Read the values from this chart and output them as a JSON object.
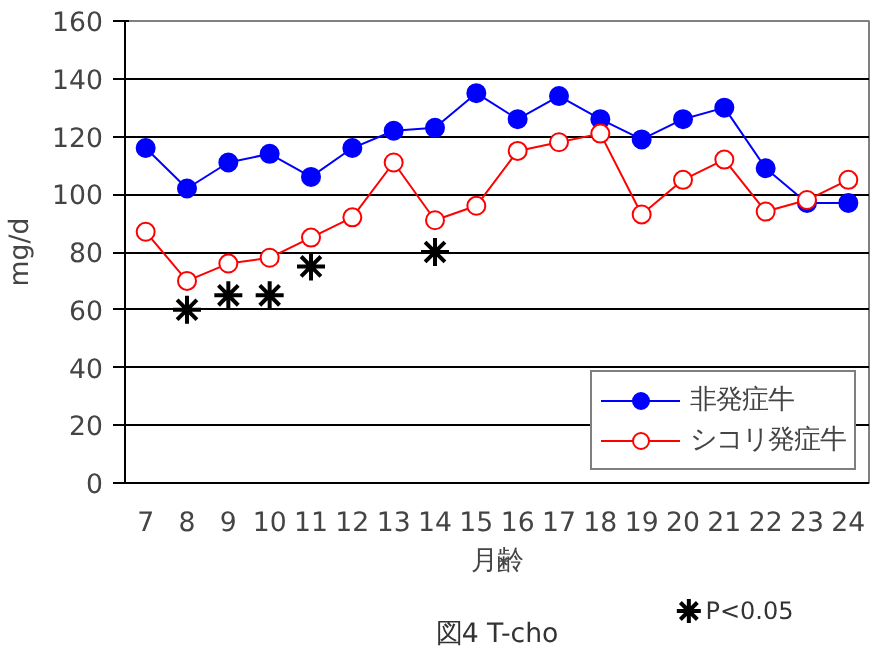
{
  "chart_data": {
    "type": "line",
    "title": "図4 T-cho",
    "xlabel": "月齢",
    "ylabel": "mg/d",
    "categories": [
      "7",
      "8",
      "9",
      "10",
      "11",
      "12",
      "13",
      "14",
      "15",
      "16",
      "17",
      "18",
      "19",
      "20",
      "21",
      "22",
      "23",
      "24"
    ],
    "ylim": [
      0,
      160
    ],
    "yticks": [
      0,
      20,
      40,
      60,
      80,
      100,
      120,
      140,
      160
    ],
    "grid": "y",
    "legend": "bottom right",
    "marker": "circle",
    "series": [
      {
        "name": "非発症牛",
        "color": "#0000ff",
        "values": [
          116,
          102,
          111,
          114,
          106,
          116,
          122,
          123,
          135,
          126,
          134,
          126,
          119,
          126,
          130,
          109,
          97,
          97
        ]
      },
      {
        "name": "シコリ発症牛",
        "color": "#ff0000",
        "values": [
          87,
          70,
          76,
          78,
          85,
          92,
          111,
          91,
          96,
          115,
          118,
          121,
          93,
          105,
          112,
          94,
          98,
          105
        ]
      },
      {
        "name": "P<0.05",
        "type": "scatter",
        "marker": "cross",
        "color": "#000000",
        "values": [
          null,
          60,
          65,
          65,
          75,
          null,
          null,
          80,
          null,
          null,
          null,
          null,
          null,
          null,
          null,
          null,
          null,
          null
        ]
      }
    ]
  }
}
